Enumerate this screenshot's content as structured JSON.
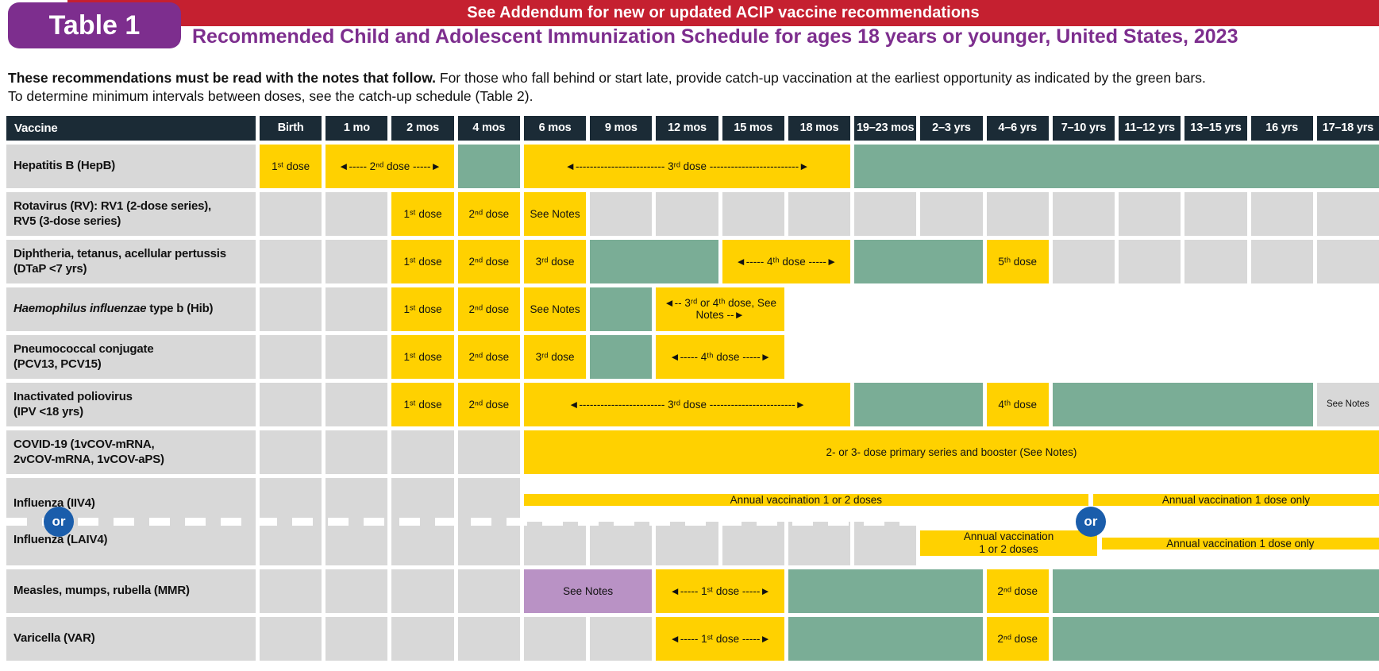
{
  "header": {
    "badge": "Table 1",
    "banner": "See Addendum for new or updated ACIP vaccine recommendations",
    "title": "Recommended Child and Adolescent Immunization Schedule for ages 18 years or younger, United States, 2023"
  },
  "intro": {
    "bold": "These recommendations must be read with the notes that follow.",
    "rest": " For those who fall behind or start late, provide catch-up vaccination at the earliest opportunity as indicated by the green bars.",
    "line2": "To determine minimum intervals between doses, see the catch-up schedule (Table 2)."
  },
  "colors": {
    "recommended_yellow": "#FFD100",
    "catch_up_green": "#7AAD96",
    "high_risk_purple": "#B992C5",
    "empty_gray": "#D8D8D8",
    "header_navy": "#1B2B36",
    "banner_red": "#C52030",
    "title_purple": "#7D2E8E",
    "or_blue": "#1A5DAB"
  },
  "table": {
    "corner_label": "Vaccine",
    "columns": [
      "Birth",
      "1 mo",
      "2 mos",
      "4 mos",
      "6 mos",
      "9 mos",
      "12 mos",
      "15 mos",
      "18 mos",
      "19–23 mos",
      "2–3 yrs",
      "4–6 yrs",
      "7–10 yrs",
      "11–12 yrs",
      "13–15 yrs",
      "16 yrs",
      "17–18 yrs"
    ],
    "rows": [
      {
        "name": "hepatitis-b",
        "label_lines": [
          {
            "t": "Hepatitis B (HepB)"
          }
        ],
        "cells": [
          {
            "c": "y",
            "t": "1ˢᵗ dose"
          },
          {
            "c": "y",
            "span": 2,
            "t": "◄----- 2ⁿᵈ dose -----►"
          },
          {
            "c": "g"
          },
          {
            "c": "y",
            "span": 5,
            "t": "◄------------------------- 3ʳᵈ dose -------------------------►"
          },
          {
            "c": "g",
            "span": 8
          }
        ]
      },
      {
        "name": "rotavirus",
        "label_lines": [
          {
            "t": "Rotavirus (RV): RV1 (2-dose series),"
          },
          {
            "t": "RV5 (3-dose series)"
          }
        ],
        "cells": [
          {
            "c": "e"
          },
          {
            "c": "e"
          },
          {
            "c": "y",
            "t": "1ˢᵗ dose"
          },
          {
            "c": "y",
            "t": "2ⁿᵈ dose"
          },
          {
            "c": "y",
            "t": "See Notes"
          },
          {
            "c": "e"
          },
          {
            "c": "e"
          },
          {
            "c": "e"
          },
          {
            "c": "e"
          },
          {
            "c": "e"
          },
          {
            "c": "e"
          },
          {
            "c": "e"
          },
          {
            "c": "e"
          },
          {
            "c": "e"
          },
          {
            "c": "e"
          },
          {
            "c": "e"
          },
          {
            "c": "e"
          }
        ]
      },
      {
        "name": "dtap",
        "label_lines": [
          {
            "t": "Diphtheria, tetanus, acellular pertussis"
          },
          {
            "t": "(DTaP <7 yrs)"
          }
        ],
        "cells": [
          {
            "c": "e"
          },
          {
            "c": "e"
          },
          {
            "c": "y",
            "t": "1ˢᵗ dose"
          },
          {
            "c": "y",
            "t": "2ⁿᵈ dose"
          },
          {
            "c": "y",
            "t": "3ʳᵈ dose"
          },
          {
            "c": "g",
            "span": 2
          },
          {
            "c": "y",
            "span": 2,
            "t": "◄----- 4ᵗʰ dose -----►"
          },
          {
            "c": "g",
            "span": 2
          },
          {
            "c": "y",
            "t": "5ᵗʰ dose"
          },
          {
            "c": "e"
          },
          {
            "c": "e"
          },
          {
            "c": "e"
          },
          {
            "c": "e"
          },
          {
            "c": "e"
          }
        ]
      },
      {
        "name": "hib",
        "label_lines": [
          {
            "i": "Haemophilus influenzae",
            "t": " type b (Hib)"
          }
        ],
        "cells": [
          {
            "c": "e"
          },
          {
            "c": "e"
          },
          {
            "c": "y",
            "t": "1ˢᵗ dose"
          },
          {
            "c": "y",
            "t": "2ⁿᵈ dose"
          },
          {
            "c": "y",
            "t": "See Notes"
          },
          {
            "c": "g"
          },
          {
            "c": "y",
            "span": 2,
            "w": 1,
            "t": "◄-- 3ʳᵈ or 4ᵗʰ dose, See Notes --►"
          },
          {
            "span": 9,
            "split": [
              {
                "c": "g",
                "pct": 38
              },
              {
                "c": "p"
              }
            ]
          }
        ]
      },
      {
        "name": "pcv",
        "label_lines": [
          {
            "t": "Pneumococcal conjugate"
          },
          {
            "t": "(PCV13, PCV15)"
          }
        ],
        "cells": [
          {
            "c": "e"
          },
          {
            "c": "e"
          },
          {
            "c": "y",
            "t": "1ˢᵗ dose"
          },
          {
            "c": "y",
            "t": "2ⁿᵈ dose"
          },
          {
            "c": "y",
            "t": "3ʳᵈ dose"
          },
          {
            "c": "g"
          },
          {
            "c": "y",
            "span": 2,
            "t": "◄----- 4ᵗʰ dose -----►"
          },
          {
            "span": 9,
            "split": [
              {
                "c": "g",
                "pct": 38
              },
              {
                "c": "p"
              }
            ]
          }
        ]
      },
      {
        "name": "ipv",
        "label_lines": [
          {
            "t": "Inactivated poliovirus"
          },
          {
            "t": "(IPV <18 yrs)"
          }
        ],
        "cells": [
          {
            "c": "e"
          },
          {
            "c": "e"
          },
          {
            "c": "y",
            "t": "1ˢᵗ dose"
          },
          {
            "c": "y",
            "t": "2ⁿᵈ dose"
          },
          {
            "c": "y",
            "span": 5,
            "t": "◄------------------------ 3ʳᵈ dose ------------------------►"
          },
          {
            "c": "g",
            "span": 2
          },
          {
            "c": "y",
            "t": "4ᵗʰ dose"
          },
          {
            "c": "g",
            "span": 4
          },
          {
            "c": "e",
            "small": 1,
            "t": "See Notes"
          }
        ]
      },
      {
        "name": "covid-19",
        "label_lines": [
          {
            "t": "COVID-19 (1vCOV-mRNA,"
          },
          {
            "t": "2vCOV-mRNA, 1vCOV-aPS)"
          }
        ],
        "cells": [
          {
            "c": "e"
          },
          {
            "c": "e"
          },
          {
            "c": "e"
          },
          {
            "c": "e"
          },
          {
            "c": "y",
            "span": 13,
            "t": "2- or 3- dose primary series and booster (See Notes)"
          }
        ]
      },
      {
        "influenza_block": true
      },
      {
        "name": "mmr",
        "label_lines": [
          {
            "t": "Measles, mumps, rubella (MMR)"
          }
        ],
        "cells": [
          {
            "c": "e"
          },
          {
            "c": "e"
          },
          {
            "c": "e"
          },
          {
            "c": "e"
          },
          {
            "c": "p",
            "span": 2,
            "t": "See Notes"
          },
          {
            "c": "y",
            "span": 2,
            "t": "◄----- 1ˢᵗ dose -----►"
          },
          {
            "c": "g",
            "span": 3
          },
          {
            "c": "y",
            "t": "2ⁿᵈ dose"
          },
          {
            "c": "g",
            "span": 5
          }
        ]
      },
      {
        "name": "varicella",
        "label_lines": [
          {
            "t": "Varicella (VAR)"
          }
        ],
        "cells": [
          {
            "c": "e"
          },
          {
            "c": "e"
          },
          {
            "c": "e"
          },
          {
            "c": "e"
          },
          {
            "c": "e"
          },
          {
            "c": "e"
          },
          {
            "c": "y",
            "span": 2,
            "t": "◄----- 1ˢᵗ dose -----►"
          },
          {
            "c": "g",
            "span": 3
          },
          {
            "c": "y",
            "t": "2ⁿᵈ dose"
          },
          {
            "c": "g",
            "span": 5
          }
        ]
      }
    ]
  },
  "influenza": {
    "label_iiv4": "Influenza (IIV4)",
    "label_laiv4": "Influenza (LAIV4)",
    "iiv4_left": "Annual vaccination 1 or 2 doses",
    "iiv4_right": "Annual vaccination 1 dose only",
    "laiv4_left_line1": "Annual vaccination",
    "laiv4_left_line2": "1 or 2 doses",
    "laiv4_right": "Annual vaccination 1 dose only",
    "or": "or"
  }
}
